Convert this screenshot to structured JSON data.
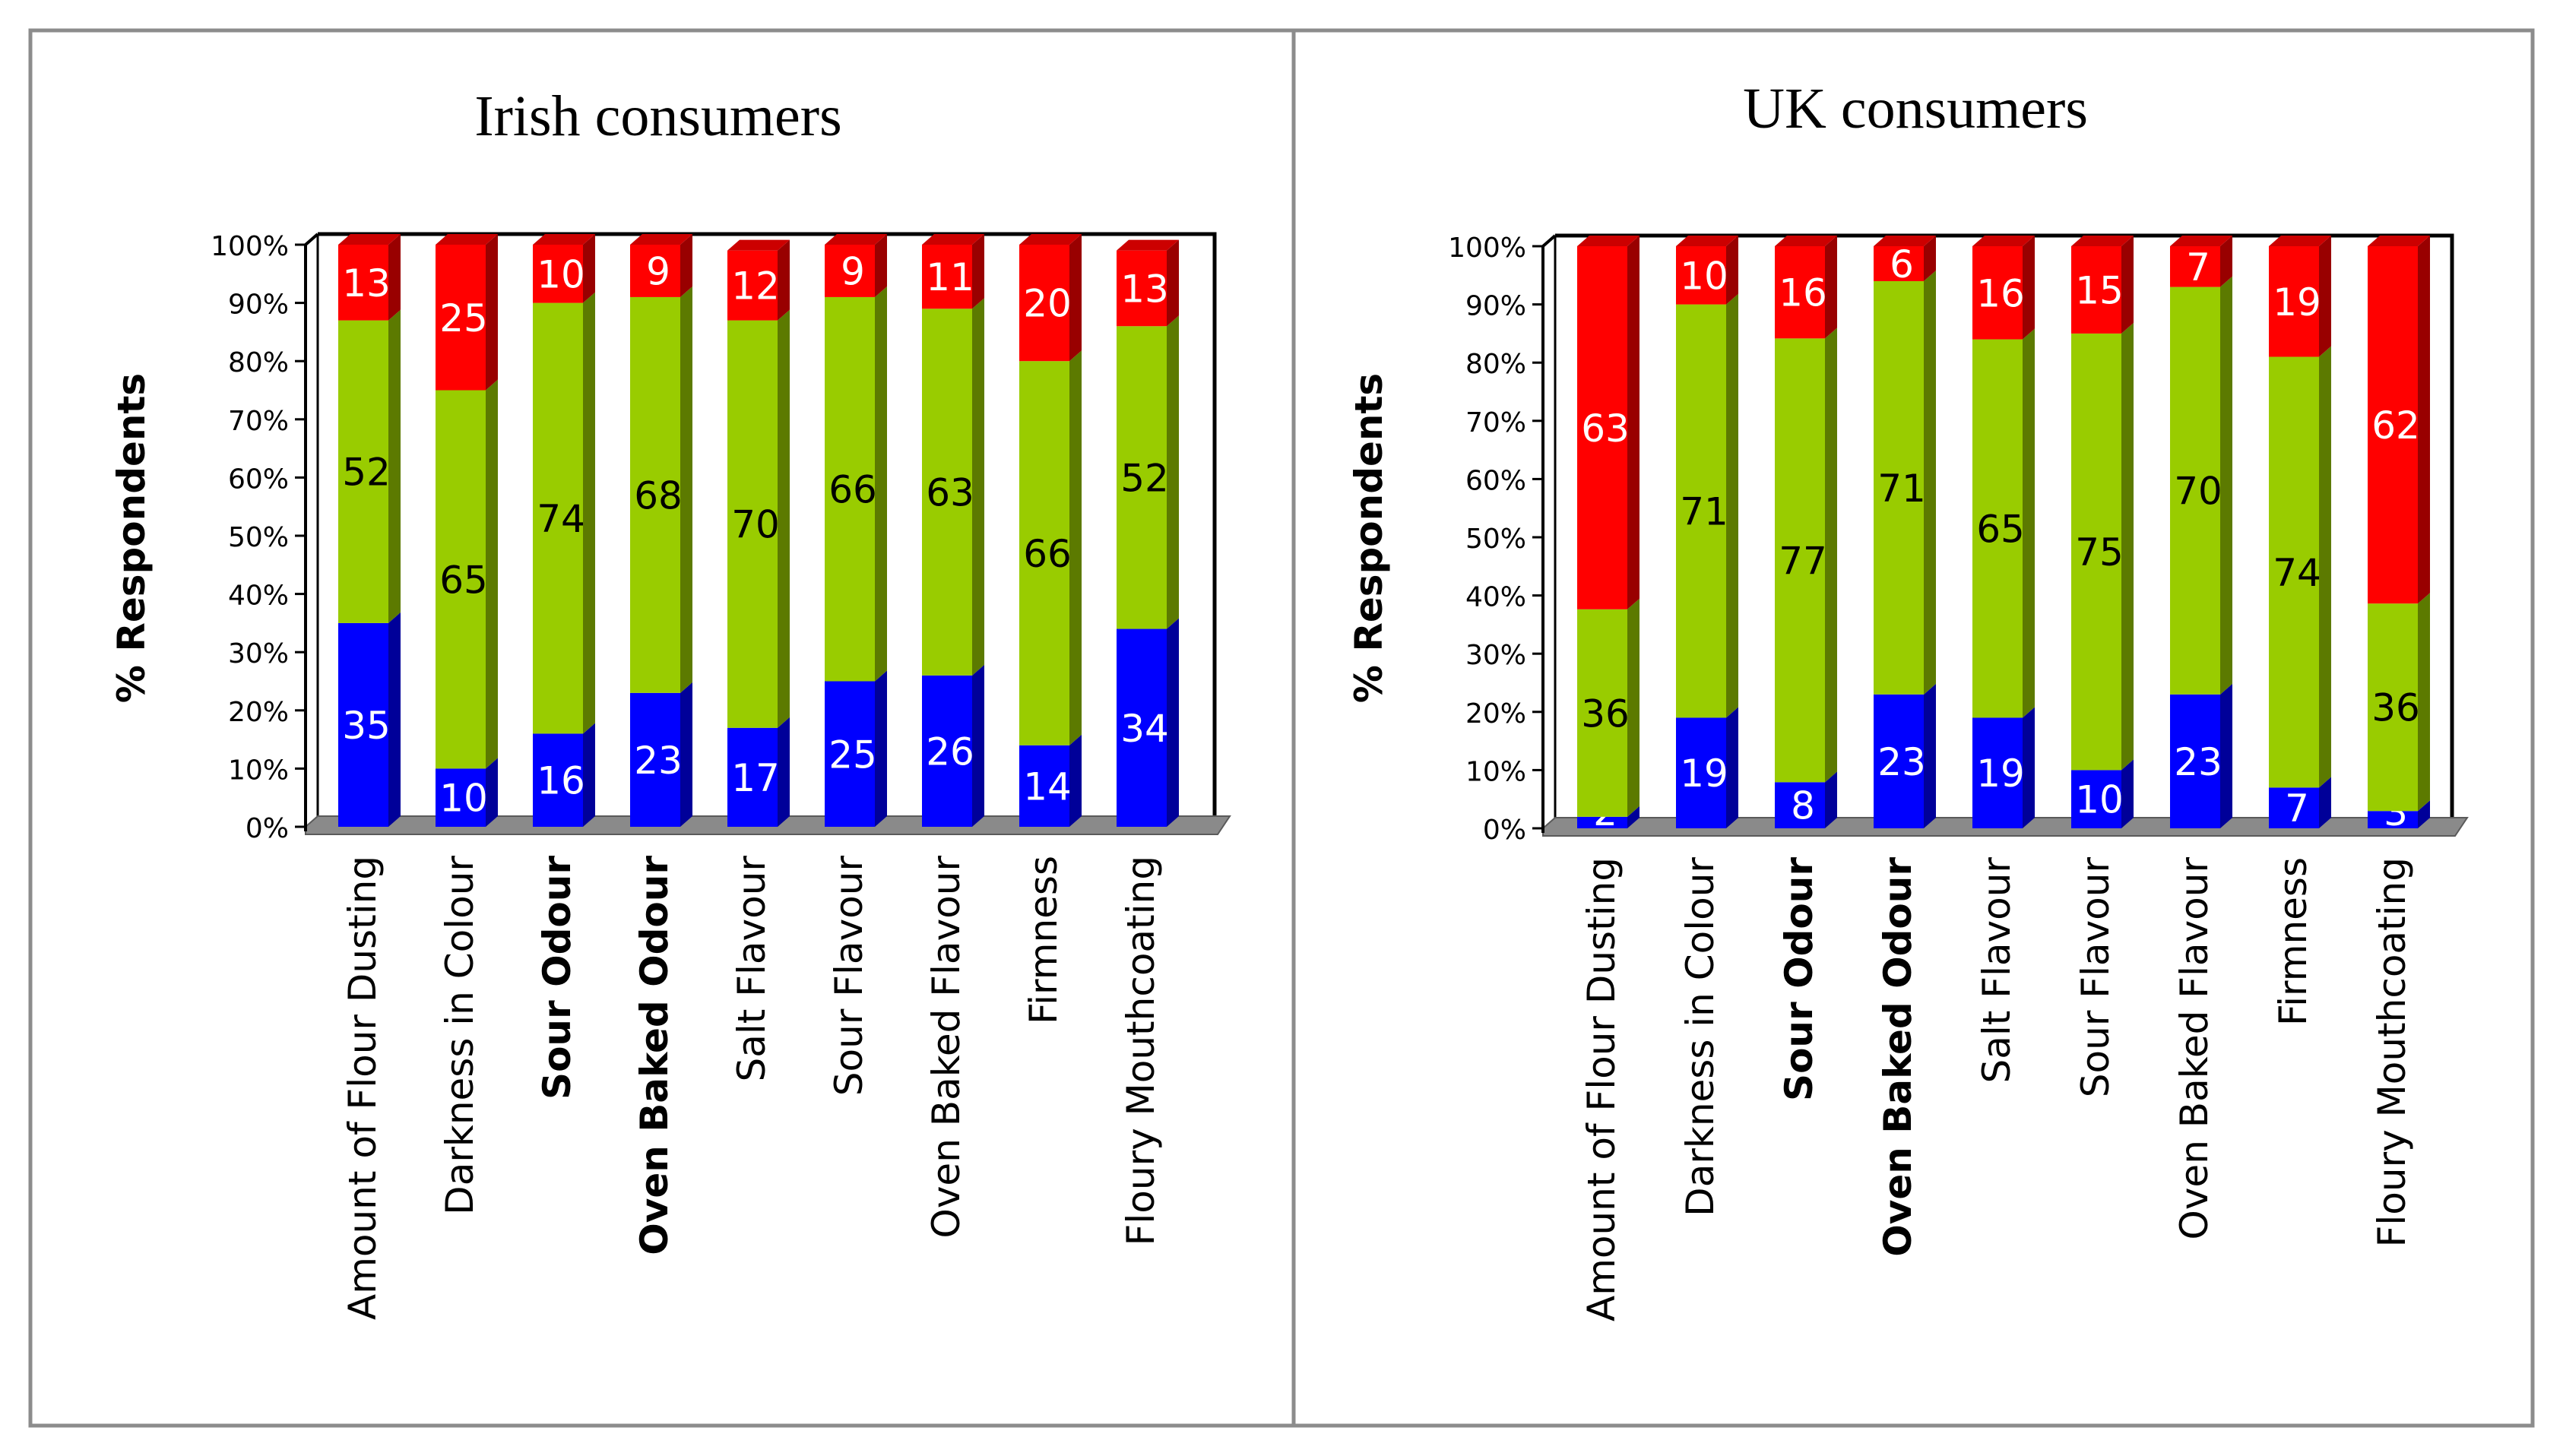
{
  "chart_data": [
    {
      "type": "bar",
      "stacked": true,
      "percent": true,
      "title": "Irish consumers",
      "ylabel": "% Respondents",
      "xlabel": "",
      "ylim": [
        0,
        100
      ],
      "yticks": [
        "0%",
        "10%",
        "20%",
        "30%",
        "40%",
        "50%",
        "60%",
        "70%",
        "80%",
        "90%",
        "100%"
      ],
      "categories": [
        {
          "label": "Amount of Flour Dusting",
          "bold": false
        },
        {
          "label": "Darkness in Colour",
          "bold": false
        },
        {
          "label": "Sour Odour",
          "bold": true
        },
        {
          "label": "Oven Baked Odour",
          "bold": true
        },
        {
          "label": "Salt Flavour",
          "bold": false
        },
        {
          "label": "Sour Flavour",
          "bold": false
        },
        {
          "label": "Oven Baked Flavour",
          "bold": false
        },
        {
          "label": "Firmness",
          "bold": false
        },
        {
          "label": "Floury Mouthcoating",
          "bold": false
        }
      ],
      "series": [
        {
          "name": "blue",
          "color": "#0000ff",
          "label_color": "#ffffff",
          "values": [
            35,
            10,
            16,
            23,
            17,
            25,
            26,
            14,
            34
          ]
        },
        {
          "name": "green",
          "color": "#99cc00",
          "label_color": "#000000",
          "values": [
            52,
            65,
            74,
            68,
            70,
            66,
            63,
            66,
            52
          ]
        },
        {
          "name": "red",
          "color": "#ff0000",
          "label_color": "#ffffff",
          "values": [
            13,
            25,
            10,
            9,
            12,
            9,
            11,
            20,
            13
          ]
        }
      ]
    },
    {
      "type": "bar",
      "stacked": true,
      "percent": true,
      "title": "UK consumers",
      "ylabel": "% Respondents",
      "xlabel": "",
      "ylim": [
        0,
        100
      ],
      "yticks": [
        "0%",
        "10%",
        "20%",
        "30%",
        "40%",
        "50%",
        "60%",
        "70%",
        "80%",
        "90%",
        "100%"
      ],
      "categories": [
        {
          "label": "Amount of Flour Dusting",
          "bold": false
        },
        {
          "label": "Darkness in Colour",
          "bold": false
        },
        {
          "label": "Sour Odour",
          "bold": true
        },
        {
          "label": "Oven Baked Odour",
          "bold": true
        },
        {
          "label": "Salt Flavour",
          "bold": false
        },
        {
          "label": "Sour Flavour",
          "bold": false
        },
        {
          "label": "Oven Baked Flavour",
          "bold": false
        },
        {
          "label": "Firmness",
          "bold": false
        },
        {
          "label": "Floury Mouthcoating",
          "bold": false
        }
      ],
      "series": [
        {
          "name": "blue",
          "color": "#0000ff",
          "label_color": "#ffffff",
          "values": [
            2,
            19,
            8,
            23,
            19,
            10,
            23,
            7,
            3
          ]
        },
        {
          "name": "green",
          "color": "#99cc00",
          "label_color": "#000000",
          "values": [
            36,
            71,
            77,
            71,
            65,
            75,
            70,
            74,
            36
          ]
        },
        {
          "name": "red",
          "color": "#ff0000",
          "label_color": "#ffffff",
          "values": [
            63,
            10,
            16,
            6,
            16,
            15,
            7,
            19,
            62
          ]
        }
      ]
    }
  ]
}
